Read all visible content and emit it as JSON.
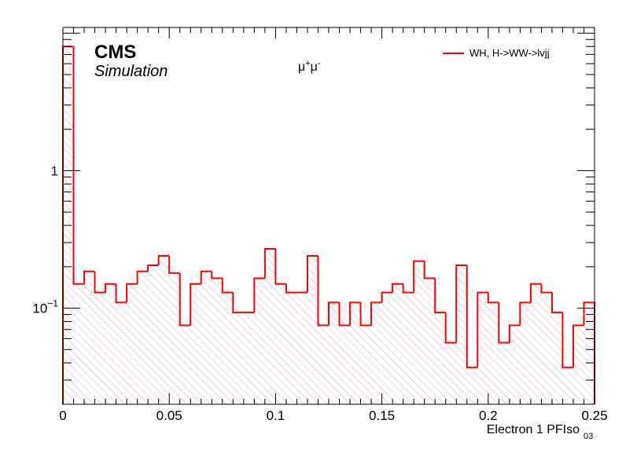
{
  "chart_data": {
    "type": "histogram",
    "x_edges": [
      0,
      0.005,
      0.01,
      0.015,
      0.02,
      0.025,
      0.03,
      0.035,
      0.04,
      0.045,
      0.05,
      0.055,
      0.06,
      0.065,
      0.07,
      0.075,
      0.08,
      0.085,
      0.09,
      0.095,
      0.1,
      0.105,
      0.11,
      0.115,
      0.12,
      0.125,
      0.13,
      0.135,
      0.14,
      0.145,
      0.15,
      0.155,
      0.16,
      0.165,
      0.17,
      0.175,
      0.18,
      0.185,
      0.19,
      0.195,
      0.2,
      0.205,
      0.21,
      0.215,
      0.22,
      0.225,
      0.23,
      0.235,
      0.24,
      0.245,
      0.25
    ],
    "series": [
      {
        "name": "WH, H->WW->lvjj",
        "color": "#ff0000",
        "values": [
          8.0,
          0.15,
          0.185,
          0.13,
          0.15,
          0.11,
          0.15,
          0.185,
          0.205,
          0.24,
          0.18,
          0.075,
          0.15,
          0.185,
          0.165,
          0.13,
          0.093,
          0.093,
          0.165,
          0.27,
          0.15,
          0.13,
          0.13,
          0.24,
          0.075,
          0.11,
          0.075,
          0.11,
          0.075,
          0.11,
          0.13,
          0.15,
          0.13,
          0.22,
          0.165,
          0.093,
          0.056,
          0.205,
          0.037,
          0.13,
          0.11,
          0.056,
          0.075,
          0.11,
          0.15,
          0.13,
          0.093,
          0.037,
          0.075,
          0.11
        ]
      }
    ],
    "xlim": [
      0,
      0.25
    ],
    "ylim": [
      0.02,
      11
    ],
    "y_scale": "log",
    "x_ticks": [
      "0",
      "0.05",
      "0.1",
      "0.15",
      "0.2",
      "0.25"
    ],
    "y_tick_labels": [
      {
        "value": 0.1,
        "base": "10",
        "exp": "−1"
      },
      {
        "value": 1,
        "base": "1",
        "exp": ""
      }
    ],
    "xlabel_main": "Electron 1 PFIso",
    "xlabel_sub": "03",
    "ylabel": "",
    "legend_position": "top-right",
    "fill_pattern": "hatched"
  },
  "labels": {
    "experiment": "CMS",
    "status": "Simulation",
    "channel_base": "μ",
    "channel_sup1": "+",
    "channel_base2": "μ",
    "channel_sup2": "-"
  }
}
